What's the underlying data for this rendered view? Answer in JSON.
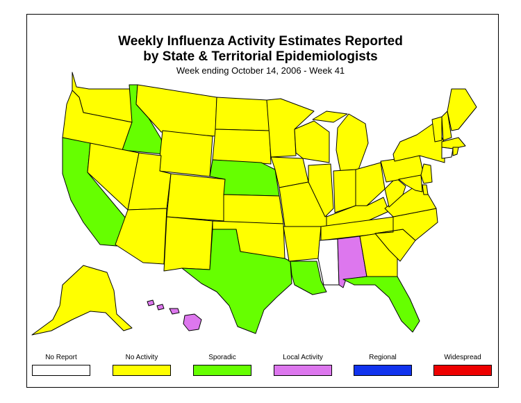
{
  "title_line1": "Weekly Influenza Activity Estimates Reported",
  "title_line2": "by State & Territorial Epidemiologists",
  "subtitle": "Week ending October 14, 2006 - Week 41",
  "colors": {
    "no_report": "#ffffff",
    "no_activity": "#ffff00",
    "sporadic": "#66ff00",
    "local_activity": "#dd77ee",
    "regional": "#1133ee",
    "widespread": "#ee0000",
    "outline": "#000000"
  },
  "legend": [
    {
      "key": "no_report",
      "label": "No Report"
    },
    {
      "key": "no_activity",
      "label": "No Activity"
    },
    {
      "key": "sporadic",
      "label": "Sporadic"
    },
    {
      "key": "local_activity",
      "label": "Local Activity"
    },
    {
      "key": "regional",
      "label": "Regional"
    },
    {
      "key": "widespread",
      "label": "Widespread"
    }
  ],
  "state_activity": {
    "Washington": "no_activity",
    "Oregon": "no_activity",
    "California": "sporadic",
    "Idaho": "sporadic",
    "Nevada": "no_activity",
    "Montana": "no_activity",
    "Wyoming": "no_activity",
    "Utah": "no_activity",
    "Arizona": "no_activity",
    "Colorado": "no_activity",
    "New Mexico": "no_activity",
    "North Dakota": "no_activity",
    "South Dakota": "no_activity",
    "Nebraska": "sporadic",
    "Kansas": "no_activity",
    "Oklahoma": "no_activity",
    "Texas": "sporadic",
    "Minnesota": "no_activity",
    "Iowa": "no_activity",
    "Missouri": "no_activity",
    "Arkansas": "no_activity",
    "Louisiana": "sporadic",
    "Wisconsin": "no_activity",
    "Illinois": "no_activity",
    "Michigan": "no_activity",
    "Indiana": "no_activity",
    "Ohio": "no_activity",
    "Kentucky": "no_activity",
    "Tennessee": "no_activity",
    "Mississippi": "no_report",
    "Alabama": "local_activity",
    "Georgia": "no_activity",
    "Florida": "sporadic",
    "South Carolina": "no_activity",
    "North Carolina": "no_activity",
    "Virginia": "no_activity",
    "West Virginia": "no_activity",
    "Pennsylvania": "no_activity",
    "New York": "no_activity",
    "Vermont": "no_activity",
    "New Hampshire": "no_activity",
    "Maine": "no_activity",
    "Massachusetts": "no_activity",
    "Connecticut": "no_report",
    "Rhode Island": "no_activity",
    "New Jersey": "no_activity",
    "Delaware": "no_activity",
    "Maryland": "no_activity",
    "Alaska": "no_activity",
    "Hawaii": "local_activity"
  }
}
